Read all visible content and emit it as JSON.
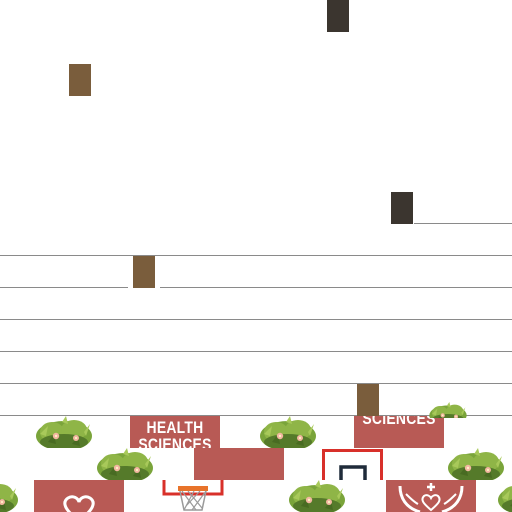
{
  "board": {
    "tiles": {
      "health_sciences": {
        "line1": "HEALTH",
        "line2": "SCIENCES"
      },
      "sciences": {
        "label": "SCIENCES"
      }
    },
    "icons": [
      "heart-icon",
      "basketball-hoop-icon",
      "hands-cross-icon",
      "hoop-frame-icon"
    ],
    "colors": {
      "tile": "#b85a55",
      "token_dark": "#3b352f",
      "token_brown": "#7a5d3c",
      "bush": "#6f9a35",
      "line": "#8a8a8a"
    }
  }
}
